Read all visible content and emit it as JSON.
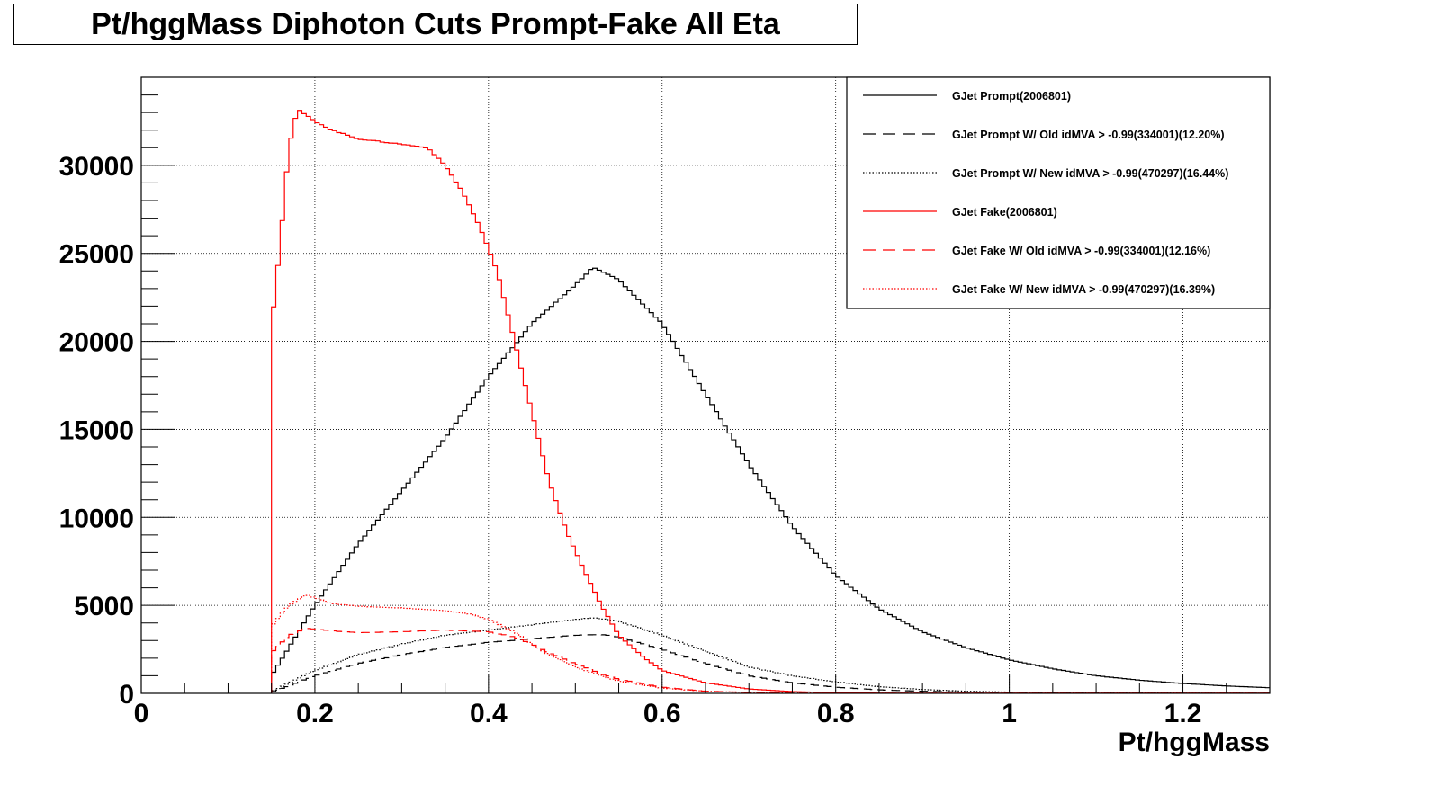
{
  "chart_data": {
    "type": "line",
    "title": "Pt/hggMass Diphoton Cuts Prompt-Fake All Eta",
    "xlabel": "Pt/hggMass",
    "ylabel": "",
    "xlim": [
      0,
      1.3
    ],
    "ylim": [
      0,
      35000
    ],
    "grid": true,
    "legend_position": "top-right",
    "xticks": [
      {
        "value": 0,
        "label": "0"
      },
      {
        "value": 0.2,
        "label": "0.2"
      },
      {
        "value": 0.4,
        "label": "0.4"
      },
      {
        "value": 0.6,
        "label": "0.6"
      },
      {
        "value": 0.8,
        "label": "0.8"
      },
      {
        "value": 1.0,
        "label": "1"
      },
      {
        "value": 1.2,
        "label": "1.2"
      }
    ],
    "yticks": [
      {
        "value": 0,
        "label": "0"
      },
      {
        "value": 5000,
        "label": "5000"
      },
      {
        "value": 10000,
        "label": "10000"
      },
      {
        "value": 15000,
        "label": "15000"
      },
      {
        "value": 20000,
        "label": "20000"
      },
      {
        "value": 25000,
        "label": "25000"
      },
      {
        "value": 30000,
        "label": "30000"
      }
    ],
    "series": [
      {
        "name": "GJet Prompt(2006801)",
        "color": "#000000",
        "style": "solid",
        "points": [
          [
            0.15,
            1000
          ],
          [
            0.2,
            5000
          ],
          [
            0.25,
            8500
          ],
          [
            0.3,
            11500
          ],
          [
            0.35,
            14500
          ],
          [
            0.4,
            18000
          ],
          [
            0.45,
            21000
          ],
          [
            0.5,
            23200
          ],
          [
            0.52,
            24200
          ],
          [
            0.55,
            23500
          ],
          [
            0.6,
            21000
          ],
          [
            0.65,
            17000
          ],
          [
            0.7,
            13000
          ],
          [
            0.75,
            9500
          ],
          [
            0.8,
            6700
          ],
          [
            0.85,
            4800
          ],
          [
            0.9,
            3500
          ],
          [
            0.95,
            2600
          ],
          [
            1.0,
            1900
          ],
          [
            1.05,
            1400
          ],
          [
            1.1,
            1000
          ],
          [
            1.15,
            750
          ],
          [
            1.2,
            560
          ],
          [
            1.25,
            420
          ],
          [
            1.3,
            320
          ]
        ]
      },
      {
        "name": "GJet Prompt W/ Old idMVA > -0.99(334001)(12.20%)",
        "color": "#000000",
        "style": "dashed",
        "points": [
          [
            0.15,
            50
          ],
          [
            0.2,
            1000
          ],
          [
            0.25,
            1700
          ],
          [
            0.3,
            2200
          ],
          [
            0.35,
            2600
          ],
          [
            0.4,
            2900
          ],
          [
            0.45,
            3100
          ],
          [
            0.5,
            3300
          ],
          [
            0.53,
            3350
          ],
          [
            0.55,
            3200
          ],
          [
            0.6,
            2500
          ],
          [
            0.65,
            1700
          ],
          [
            0.7,
            1000
          ],
          [
            0.75,
            600
          ],
          [
            0.8,
            350
          ],
          [
            0.85,
            200
          ],
          [
            0.9,
            120
          ],
          [
            0.95,
            70
          ],
          [
            1.0,
            40
          ],
          [
            1.1,
            15
          ],
          [
            1.3,
            5
          ]
        ]
      },
      {
        "name": "GJet Prompt W/ New idMVA > -0.99(470297)(16.44%)",
        "color": "#000000",
        "style": "dotted",
        "points": [
          [
            0.15,
            100
          ],
          [
            0.2,
            1300
          ],
          [
            0.25,
            2200
          ],
          [
            0.3,
            2800
          ],
          [
            0.35,
            3300
          ],
          [
            0.4,
            3600
          ],
          [
            0.45,
            3900
          ],
          [
            0.5,
            4200
          ],
          [
            0.52,
            4300
          ],
          [
            0.55,
            4100
          ],
          [
            0.6,
            3300
          ],
          [
            0.65,
            2400
          ],
          [
            0.7,
            1500
          ],
          [
            0.75,
            1000
          ],
          [
            0.8,
            650
          ],
          [
            0.85,
            380
          ],
          [
            0.9,
            220
          ],
          [
            0.95,
            120
          ],
          [
            1.0,
            70
          ],
          [
            1.1,
            25
          ],
          [
            1.3,
            8
          ]
        ]
      },
      {
        "name": "GJet Fake(2006801)",
        "color": "#ff0000",
        "style": "solid",
        "points": [
          [
            0.15,
            0
          ],
          [
            0.15,
            20800
          ],
          [
            0.16,
            25500
          ],
          [
            0.17,
            31000
          ],
          [
            0.18,
            33200
          ],
          [
            0.2,
            32500
          ],
          [
            0.22,
            32000
          ],
          [
            0.25,
            31500
          ],
          [
            0.3,
            31200
          ],
          [
            0.33,
            31000
          ],
          [
            0.35,
            30000
          ],
          [
            0.37,
            28500
          ],
          [
            0.39,
            26500
          ],
          [
            0.41,
            24000
          ],
          [
            0.43,
            20000
          ],
          [
            0.45,
            16000
          ],
          [
            0.47,
            12000
          ],
          [
            0.49,
            9200
          ],
          [
            0.51,
            7000
          ],
          [
            0.53,
            5000
          ],
          [
            0.55,
            3300
          ],
          [
            0.58,
            2000
          ],
          [
            0.6,
            1300
          ],
          [
            0.65,
            600
          ],
          [
            0.7,
            250
          ],
          [
            0.75,
            100
          ],
          [
            0.8,
            40
          ],
          [
            0.85,
            15
          ],
          [
            0.9,
            5
          ]
        ]
      },
      {
        "name": "GJet Fake W/ Old idMVA > -0.99(334001)(12.16%)",
        "color": "#ff0000",
        "style": "dashed",
        "points": [
          [
            0.15,
            2300
          ],
          [
            0.17,
            3300
          ],
          [
            0.19,
            3700
          ],
          [
            0.22,
            3550
          ],
          [
            0.25,
            3450
          ],
          [
            0.3,
            3500
          ],
          [
            0.35,
            3600
          ],
          [
            0.4,
            3500
          ],
          [
            0.43,
            3200
          ],
          [
            0.45,
            2800
          ],
          [
            0.47,
            2300
          ],
          [
            0.5,
            1700
          ],
          [
            0.53,
            1100
          ],
          [
            0.55,
            800
          ],
          [
            0.6,
            350
          ],
          [
            0.65,
            120
          ],
          [
            0.7,
            50
          ],
          [
            0.8,
            10
          ]
        ]
      },
      {
        "name": "GJet Fake W/ New idMVA > -0.99(470297)(16.39%)",
        "color": "#ff0000",
        "style": "dotted",
        "points": [
          [
            0.15,
            3800
          ],
          [
            0.17,
            5000
          ],
          [
            0.19,
            5600
          ],
          [
            0.22,
            5100
          ],
          [
            0.25,
            4950
          ],
          [
            0.3,
            4850
          ],
          [
            0.35,
            4700
          ],
          [
            0.38,
            4500
          ],
          [
            0.4,
            4200
          ],
          [
            0.43,
            3500
          ],
          [
            0.45,
            2800
          ],
          [
            0.47,
            2200
          ],
          [
            0.5,
            1500
          ],
          [
            0.53,
            1000
          ],
          [
            0.55,
            700
          ],
          [
            0.6,
            300
          ],
          [
            0.65,
            120
          ],
          [
            0.7,
            50
          ],
          [
            0.8,
            10
          ]
        ]
      }
    ]
  }
}
